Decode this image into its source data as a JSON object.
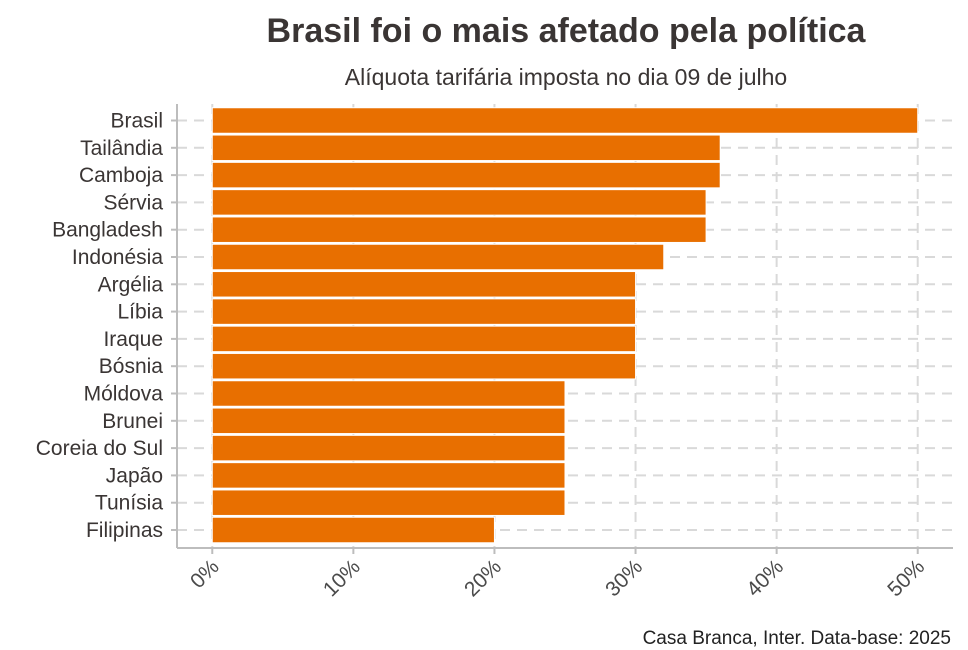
{
  "chart_data": {
    "type": "bar",
    "orientation": "horizontal",
    "title": "Brasil foi o mais afetado pela política",
    "subtitle": "Alíquota tarifária imposta no dia 09 de julho",
    "caption": "Casa Branca, Inter. Data-base: 2025",
    "categories": [
      "Brasil",
      "Tailândia",
      "Camboja",
      "Sérvia",
      "Bangladesh",
      "Indonésia",
      "Argélia",
      "Líbia",
      "Iraque",
      "Bósnia",
      "Móldova",
      "Brunei",
      "Coreia do Sul",
      "Japão",
      "Tunísia",
      "Filipinas"
    ],
    "values": [
      50,
      36,
      36,
      35,
      35,
      32,
      30,
      30,
      30,
      30,
      25,
      25,
      25,
      25,
      25,
      20
    ],
    "x_ticks": [
      "0%",
      "10%",
      "20%",
      "30%",
      "40%",
      "50%"
    ],
    "x_tick_values": [
      0,
      10,
      20,
      30,
      40,
      50
    ],
    "xlim": [
      -2.5,
      52.5
    ],
    "grid": true,
    "bar_color": "#e86f00"
  }
}
